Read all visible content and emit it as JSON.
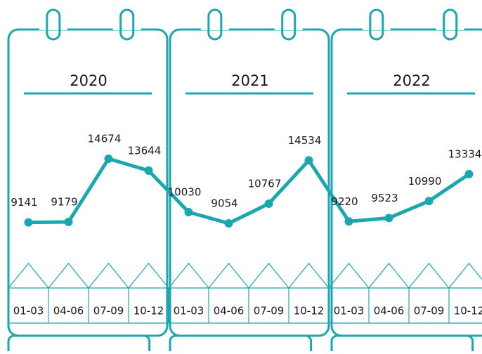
{
  "chart_data": {
    "type": "line",
    "groups": [
      "2020",
      "2021",
      "2022"
    ],
    "categories": [
      "01-03",
      "04-06",
      "07-09",
      "10-12",
      "01-03",
      "04-06",
      "07-09",
      "10-12",
      "01-03",
      "04-06",
      "07-09",
      "10-12"
    ],
    "values": [
      9141,
      9179,
      14674,
      13644,
      10030,
      9054,
      10767,
      14534,
      9220,
      9523,
      10990,
      13334
    ],
    "color": "#1aa7b0"
  }
}
